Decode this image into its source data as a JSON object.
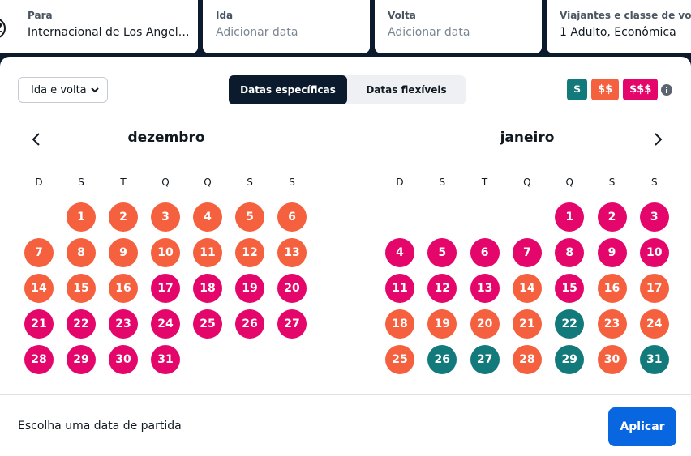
{
  "header": {
    "fields": [
      {
        "label": "Para",
        "value": "Internacional de Los Angeles"
      },
      {
        "label": "Ida",
        "value": "Adicionar data"
      },
      {
        "label": "Volta",
        "value": "Adicionar data"
      },
      {
        "label": "Viajantes e classe de voo",
        "value": "1 Adulto, Econômica"
      }
    ]
  },
  "controls": {
    "trip_type": "Ida e volta",
    "toggle": [
      "Datas específicas",
      "Datas flexíveis"
    ],
    "price_legend": [
      {
        "label": "$",
        "color": "#137a7b"
      },
      {
        "label": "$$",
        "color": "#f5603f"
      },
      {
        "label": "$$$",
        "color": "#e4066a"
      }
    ]
  },
  "calendar": {
    "weekdays": [
      "D",
      "S",
      "T",
      "Q",
      "Q",
      "S",
      "S"
    ],
    "months": [
      {
        "name": "dezembro",
        "days": [
          null,
          {
            "day": 1,
            "color": "#f5603f"
          },
          {
            "day": 2,
            "color": "#f5603f"
          },
          {
            "day": 3,
            "color": "#f5603f"
          },
          {
            "day": 4,
            "color": "#f5603f"
          },
          {
            "day": 5,
            "color": "#f5603f"
          },
          {
            "day": 6,
            "color": "#f5603f"
          },
          {
            "day": 7,
            "color": "#f5603f"
          },
          {
            "day": 8,
            "color": "#f5603f"
          },
          {
            "day": 9,
            "color": "#f5603f"
          },
          {
            "day": 10,
            "color": "#f5603f"
          },
          {
            "day": 11,
            "color": "#f5603f"
          },
          {
            "day": 12,
            "color": "#f5603f"
          },
          {
            "day": 13,
            "color": "#f5603f"
          },
          {
            "day": 14,
            "color": "#f5603f"
          },
          {
            "day": 15,
            "color": "#f5603f"
          },
          {
            "day": 16,
            "color": "#f5603f"
          },
          {
            "day": 17,
            "color": "#e4066a"
          },
          {
            "day": 18,
            "color": "#e4066a"
          },
          {
            "day": 19,
            "color": "#e4066a"
          },
          {
            "day": 20,
            "color": "#e4066a"
          },
          {
            "day": 21,
            "color": "#e4066a"
          },
          {
            "day": 22,
            "color": "#e4066a"
          },
          {
            "day": 23,
            "color": "#e4066a"
          },
          {
            "day": 24,
            "color": "#e4066a"
          },
          {
            "day": 25,
            "color": "#e4066a"
          },
          {
            "day": 26,
            "color": "#e4066a"
          },
          {
            "day": 27,
            "color": "#e4066a"
          },
          {
            "day": 28,
            "color": "#e4066a"
          },
          {
            "day": 29,
            "color": "#e4066a"
          },
          {
            "day": 30,
            "color": "#e4066a"
          },
          {
            "day": 31,
            "color": "#e4066a"
          }
        ]
      },
      {
        "name": "janeiro",
        "days": [
          null,
          null,
          null,
          null,
          {
            "day": 1,
            "color": "#e4066a"
          },
          {
            "day": 2,
            "color": "#e4066a"
          },
          {
            "day": 3,
            "color": "#e4066a"
          },
          {
            "day": 4,
            "color": "#e4066a"
          },
          {
            "day": 5,
            "color": "#e4066a"
          },
          {
            "day": 6,
            "color": "#e4066a"
          },
          {
            "day": 7,
            "color": "#e4066a"
          },
          {
            "day": 8,
            "color": "#e4066a"
          },
          {
            "day": 9,
            "color": "#e4066a"
          },
          {
            "day": 10,
            "color": "#e4066a"
          },
          {
            "day": 11,
            "color": "#e4066a"
          },
          {
            "day": 12,
            "color": "#e4066a"
          },
          {
            "day": 13,
            "color": "#e4066a"
          },
          {
            "day": 14,
            "color": "#f5603f"
          },
          {
            "day": 15,
            "color": "#e4066a"
          },
          {
            "day": 16,
            "color": "#f5603f"
          },
          {
            "day": 17,
            "color": "#f5603f"
          },
          {
            "day": 18,
            "color": "#f5603f"
          },
          {
            "day": 19,
            "color": "#f5603f"
          },
          {
            "day": 20,
            "color": "#f5603f"
          },
          {
            "day": 21,
            "color": "#f5603f"
          },
          {
            "day": 22,
            "color": "#137a7b"
          },
          {
            "day": 23,
            "color": "#f5603f"
          },
          {
            "day": 24,
            "color": "#f5603f"
          },
          {
            "day": 25,
            "color": "#f5603f"
          },
          {
            "day": 26,
            "color": "#137a7b"
          },
          {
            "day": 27,
            "color": "#137a7b"
          },
          {
            "day": 28,
            "color": "#f5603f"
          },
          {
            "day": 29,
            "color": "#137a7b"
          },
          {
            "day": 30,
            "color": "#f5603f"
          },
          {
            "day": 31,
            "color": "#137a7b"
          }
        ]
      }
    ]
  },
  "footer": {
    "hint": "Escolha uma data de partida",
    "button": "Aplicar"
  }
}
